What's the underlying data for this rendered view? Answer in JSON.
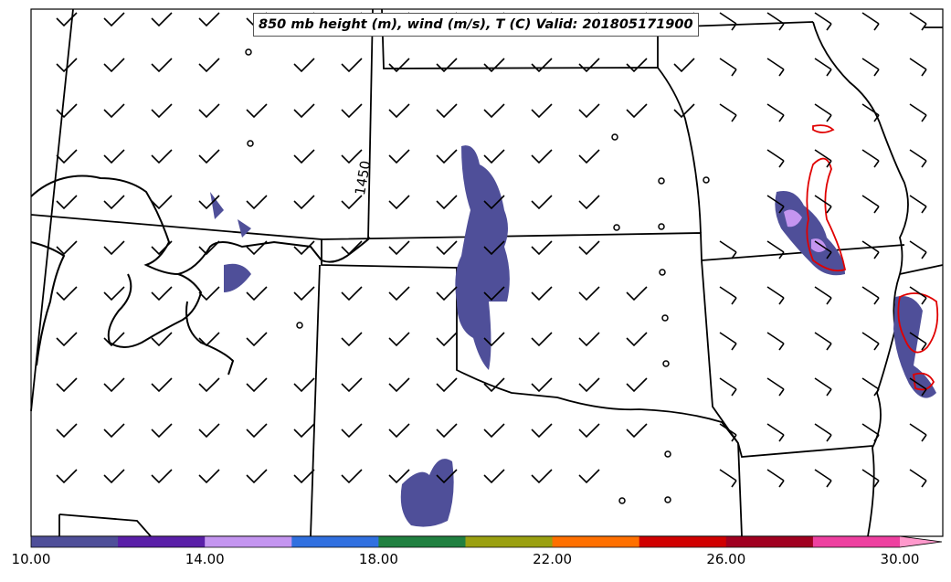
{
  "title": "850 mb height (m), wind (m/s), T (C) Valid: 201805171900",
  "contour_label": "1450",
  "colorbar": {
    "colors": [
      "#4f4f99",
      "#5a1fa8",
      "#c495f0",
      "#3070e0",
      "#208040",
      "#9aa010",
      "#ff7000",
      "#d00000",
      "#a00020",
      "#ee40a0",
      "#ff99cc"
    ],
    "tick_labels": [
      "10.00",
      "14.00",
      "18.00",
      "22.00",
      "26.00",
      "30.00"
    ],
    "min": 10,
    "max": 30,
    "step": 2
  },
  "icons": [
    "wind-barb-icon",
    "calm-wind-circle-icon"
  ]
}
